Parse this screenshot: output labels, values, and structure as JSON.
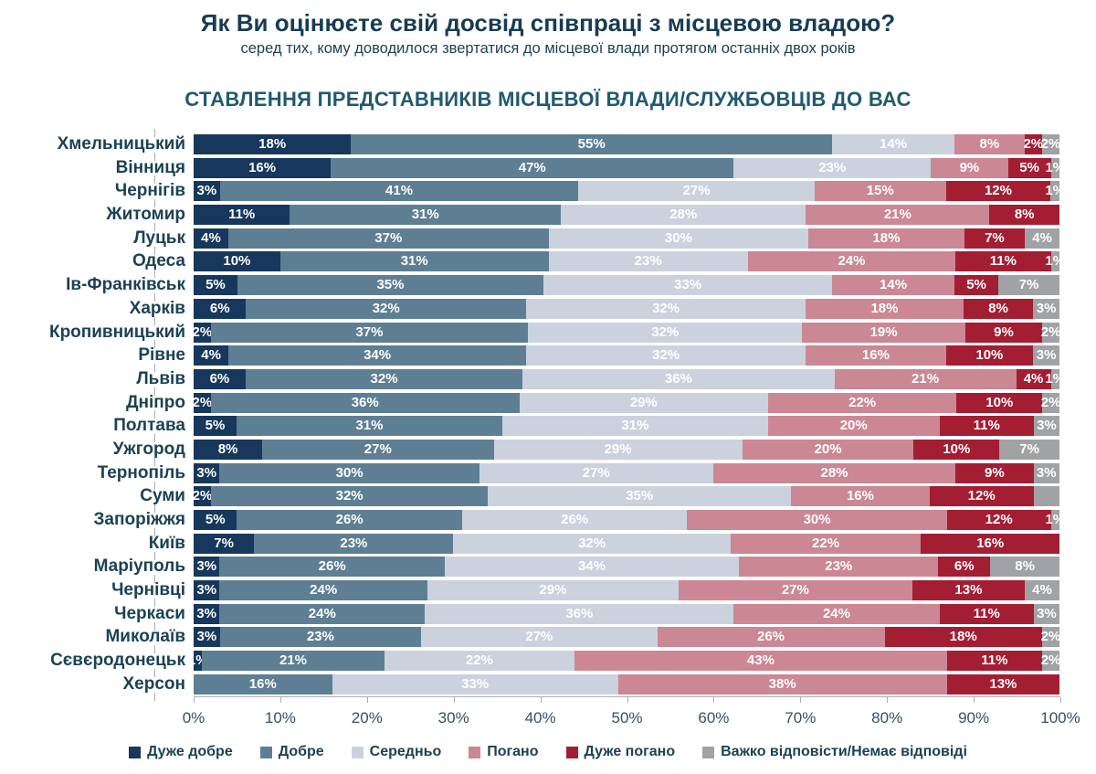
{
  "header": {
    "title": "Як Ви оцінюєте свій досвід співпраці з місцевою владою?",
    "subtitle": "серед тих, кому доводилося звертатися до місцевої влади протягом останніх двох років",
    "chart_heading": "СТАВЛЕННЯ ПРЕДСТАВНИКІВ МІСЦЕВОЇ ВЛАДИ/СЛУЖБОВЦІВ ДО ВАС"
  },
  "colors": {
    "very_good": "#17375C",
    "good": "#5E7F93",
    "average": "#CBD2DE",
    "bad": "#CB8793",
    "very_bad": "#A31D33",
    "no_answer": "#A0A2A5",
    "text_dark": "#1B4254",
    "axis": "#ADAFB2"
  },
  "legend": [
    {
      "label": "Дуже добре",
      "color": "#17375C"
    },
    {
      "label": "Добре",
      "color": "#5E7F93"
    },
    {
      "label": "Середньо",
      "color": "#CBD2DE"
    },
    {
      "label": "Погано",
      "color": "#CB8793"
    },
    {
      "label": "Дуже погано",
      "color": "#A31D33"
    },
    {
      "label": "Важко відповісти/Немає відповіді",
      "color": "#A0A2A5"
    }
  ],
  "axis": {
    "tick_labels": [
      "0%",
      "10%",
      "20%",
      "30%",
      "40%",
      "50%",
      "60%",
      "70%",
      "80%",
      "90%",
      "100%"
    ],
    "min": 0,
    "max": 100
  },
  "chart_data": {
    "type": "bar",
    "stacked": true,
    "orientation": "horizontal",
    "xlim": [
      0,
      100
    ],
    "grid": false,
    "legend_position": "bottom",
    "series_names": [
      "Дуже добре",
      "Добре",
      "Середньо",
      "Погано",
      "Дуже погано",
      "Важко відповісти/Немає відповіді"
    ],
    "categories": [
      "Хмельницький",
      "Вінниця",
      "Чернігів",
      "Житомир",
      "Луцьк",
      "Одеса",
      "Ів-Франківськ",
      "Харків",
      "Кропивницький",
      "Рівне",
      "Львів",
      "Дніпро",
      "Полтава",
      "Ужгород",
      "Тернопіль",
      "Суми",
      "Запоріжжя",
      "Київ",
      "Маріуполь",
      "Чернівці",
      "Черкаси",
      "Миколаїв",
      "Сєвєродонецьк",
      "Херсон"
    ],
    "rows": [
      {
        "city": "Хмельницький",
        "values": [
          18,
          55,
          14,
          8,
          2,
          2
        ],
        "labels": [
          "18%",
          "55%",
          "14%",
          "8%",
          "2%",
          "2%"
        ]
      },
      {
        "city": "Вінниця",
        "values": [
          16,
          47,
          23,
          9,
          5,
          1
        ],
        "labels": [
          "16%",
          "47%",
          "23%",
          "9%",
          "5%",
          "1%"
        ]
      },
      {
        "city": "Чернігів",
        "values": [
          3,
          41,
          27,
          15,
          12,
          1
        ],
        "labels": [
          "3%",
          "41%",
          "27%",
          "15%",
          "12%",
          "1%"
        ]
      },
      {
        "city": "Житомир",
        "values": [
          11,
          31,
          28,
          21,
          8,
          0
        ],
        "labels": [
          "11%",
          "31%",
          "28%",
          "21%",
          "8%",
          ""
        ]
      },
      {
        "city": "Луцьк",
        "values": [
          4,
          37,
          30,
          18,
          7,
          4
        ],
        "labels": [
          "4%",
          "37%",
          "30%",
          "18%",
          "7%",
          "4%"
        ]
      },
      {
        "city": "Одеса",
        "values": [
          10,
          31,
          23,
          24,
          11,
          1
        ],
        "labels": [
          "10%",
          "31%",
          "23%",
          "24%",
          "11%",
          "1%"
        ]
      },
      {
        "city": "Ів-Франківськ",
        "values": [
          5,
          35,
          33,
          14,
          5,
          7
        ],
        "labels": [
          "5%",
          "35%",
          "33%",
          "14%",
          "5%",
          "7%"
        ]
      },
      {
        "city": "Харків",
        "values": [
          6,
          32,
          32,
          18,
          8,
          3
        ],
        "labels": [
          "6%",
          "32%",
          "32%",
          "18%",
          "8%",
          "3%"
        ]
      },
      {
        "city": "Кропивницький",
        "values": [
          2,
          37,
          32,
          19,
          9,
          2
        ],
        "labels": [
          "2%",
          "37%",
          "32%",
          "19%",
          "9%",
          "2%"
        ]
      },
      {
        "city": "Рівне",
        "values": [
          4,
          34,
          32,
          16,
          10,
          3
        ],
        "labels": [
          "4%",
          "34%",
          "32%",
          "16%",
          "10%",
          "3%"
        ]
      },
      {
        "city": "Львів",
        "values": [
          6,
          32,
          36,
          21,
          4,
          1
        ],
        "labels": [
          "6%",
          "32%",
          "36%",
          "21%",
          "4%",
          "1%"
        ]
      },
      {
        "city": "Дніпро",
        "values": [
          2,
          36,
          29,
          22,
          10,
          2
        ],
        "labels": [
          "2%",
          "36%",
          "29%",
          "22%",
          "10%",
          "2%"
        ]
      },
      {
        "city": "Полтава",
        "values": [
          5,
          31,
          31,
          20,
          11,
          3
        ],
        "labels": [
          "5%",
          "31%",
          "31%",
          "20%",
          "11%",
          "3%"
        ]
      },
      {
        "city": "Ужгород",
        "values": [
          8,
          27,
          29,
          20,
          10,
          7
        ],
        "labels": [
          "8%",
          "27%",
          "29%",
          "20%",
          "10%",
          "7%"
        ]
      },
      {
        "city": "Тернопіль",
        "values": [
          3,
          30,
          27,
          28,
          9,
          3
        ],
        "labels": [
          "3%",
          "30%",
          "27%",
          "28%",
          "9%",
          "3%"
        ]
      },
      {
        "city": "Суми",
        "values": [
          2,
          32,
          35,
          16,
          12,
          3
        ],
        "labels": [
          "2%",
          "32%",
          "35%",
          "16%",
          "12%",
          ""
        ]
      },
      {
        "city": "Запоріжжя",
        "values": [
          5,
          26,
          26,
          30,
          12,
          1
        ],
        "labels": [
          "5%",
          "26%",
          "26%",
          "30%",
          "12%",
          "1%"
        ]
      },
      {
        "city": "Київ",
        "values": [
          7,
          23,
          32,
          22,
          16,
          0
        ],
        "labels": [
          "7%",
          "23%",
          "32%",
          "22%",
          "16%",
          ""
        ]
      },
      {
        "city": "Маріуполь",
        "values": [
          3,
          26,
          34,
          23,
          6,
          8
        ],
        "labels": [
          "3%",
          "26%",
          "34%",
          "23%",
          "6%",
          "8%"
        ]
      },
      {
        "city": "Чернівці",
        "values": [
          3,
          24,
          29,
          27,
          13,
          4
        ],
        "labels": [
          "3%",
          "24%",
          "29%",
          "27%",
          "13%",
          "4%"
        ]
      },
      {
        "city": "Черкаси",
        "values": [
          3,
          24,
          36,
          24,
          11,
          3
        ],
        "labels": [
          "3%",
          "24%",
          "36%",
          "24%",
          "11%",
          "3%"
        ]
      },
      {
        "city": "Миколаїв",
        "values": [
          3,
          23,
          27,
          26,
          18,
          2
        ],
        "labels": [
          "3%",
          "23%",
          "27%",
          "26%",
          "18%",
          "2%"
        ]
      },
      {
        "city": "Сєвєродонецьк",
        "values": [
          1,
          21,
          22,
          43,
          11,
          2
        ],
        "labels": [
          "1%",
          "21%",
          "22%",
          "43%",
          "11%",
          "2%"
        ]
      },
      {
        "city": "Херсон",
        "values": [
          0,
          16,
          33,
          38,
          13,
          0
        ],
        "labels": [
          "",
          "16%",
          "33%",
          "38%",
          "13%",
          ""
        ]
      }
    ]
  }
}
